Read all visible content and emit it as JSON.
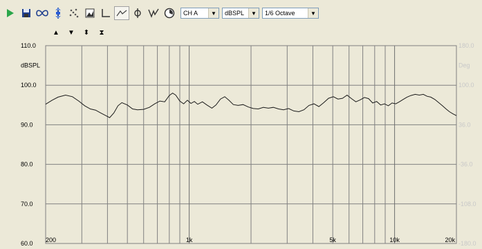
{
  "toolbar": {
    "buttons": [
      "play-icon",
      "save-icon",
      "loop-icon",
      "marker-icon",
      "scatter-icon",
      "image-icon",
      "axis-icon",
      "curve-icon",
      "phase-icon",
      "impulse-icon",
      "gauge-icon"
    ],
    "channel": "CH A",
    "units": "dBSPL",
    "smoothing": "1/6 Octave"
  },
  "subtoolbar": [
    "▲",
    "▼",
    "⬍",
    "⧗"
  ],
  "chart_data": {
    "type": "line",
    "xscale": "log",
    "xlim": [
      200,
      20000
    ],
    "ylim": [
      60,
      110
    ],
    "left_ticks": [
      "110.0",
      "dBSPL",
      "100.0",
      "90.0",
      "80.0",
      "70.0",
      "60.0"
    ],
    "right_ticks": [
      "180.0",
      "Deg",
      "100.0",
      "36.0",
      "-36.0",
      "-108.0",
      "-180.0"
    ],
    "x_tick_labels": [
      {
        "f": 200,
        "label": "200"
      },
      {
        "f": 1000,
        "label": "1k"
      },
      {
        "f": 5000,
        "label": "5k"
      },
      {
        "f": 10000,
        "label": "10k"
      },
      {
        "f": 20000,
        "label": "20k"
      }
    ],
    "grid_freqs": [
      300,
      400,
      500,
      600,
      700,
      800,
      900,
      1000,
      2000,
      3000,
      4000,
      5000,
      6000,
      7000,
      8000,
      9000,
      10000
    ],
    "colors": {
      "plot_bg": "#ece9d8",
      "grid": "#808080",
      "major_grid": "#6e6e6e",
      "trace": "#1a1a1a",
      "axis_text": "#000000",
      "right_text": "#c8c8c8"
    },
    "series": [
      {
        "points": [
          [
            200,
            95.2
          ],
          [
            215,
            96.2
          ],
          [
            230,
            97.0
          ],
          [
            250,
            97.5
          ],
          [
            270,
            97.1
          ],
          [
            290,
            96.0
          ],
          [
            310,
            94.8
          ],
          [
            330,
            94.0
          ],
          [
            350,
            93.7
          ],
          [
            370,
            93.0
          ],
          [
            390,
            92.4
          ],
          [
            410,
            91.8
          ],
          [
            430,
            93.0
          ],
          [
            450,
            94.8
          ],
          [
            470,
            95.6
          ],
          [
            500,
            95.0
          ],
          [
            530,
            94.0
          ],
          [
            560,
            93.8
          ],
          [
            600,
            93.9
          ],
          [
            640,
            94.4
          ],
          [
            680,
            95.3
          ],
          [
            720,
            96.0
          ],
          [
            760,
            95.8
          ],
          [
            800,
            97.4
          ],
          [
            830,
            98.0
          ],
          [
            860,
            97.5
          ],
          [
            900,
            96.0
          ],
          [
            940,
            95.3
          ],
          [
            980,
            96.2
          ],
          [
            1020,
            95.4
          ],
          [
            1060,
            95.9
          ],
          [
            1100,
            95.2
          ],
          [
            1160,
            95.8
          ],
          [
            1220,
            95.0
          ],
          [
            1290,
            94.2
          ],
          [
            1350,
            95.0
          ],
          [
            1420,
            96.5
          ],
          [
            1490,
            97.1
          ],
          [
            1560,
            96.2
          ],
          [
            1640,
            95.1
          ],
          [
            1730,
            94.9
          ],
          [
            1830,
            95.1
          ],
          [
            1940,
            94.5
          ],
          [
            2050,
            94.1
          ],
          [
            2170,
            94.0
          ],
          [
            2300,
            94.4
          ],
          [
            2430,
            94.2
          ],
          [
            2570,
            94.4
          ],
          [
            2720,
            94.0
          ],
          [
            2880,
            93.8
          ],
          [
            3050,
            94.1
          ],
          [
            3230,
            93.5
          ],
          [
            3420,
            93.3
          ],
          [
            3620,
            93.8
          ],
          [
            3830,
            94.9
          ],
          [
            4050,
            95.3
          ],
          [
            4280,
            94.6
          ],
          [
            4520,
            95.6
          ],
          [
            4770,
            96.7
          ],
          [
            5030,
            97.1
          ],
          [
            5300,
            96.5
          ],
          [
            5580,
            96.7
          ],
          [
            5870,
            97.5
          ],
          [
            6170,
            96.6
          ],
          [
            6480,
            95.8
          ],
          [
            6800,
            96.3
          ],
          [
            7130,
            96.9
          ],
          [
            7470,
            96.6
          ],
          [
            7820,
            95.5
          ],
          [
            8180,
            95.9
          ],
          [
            8550,
            95.0
          ],
          [
            8930,
            95.3
          ],
          [
            9320,
            94.8
          ],
          [
            9720,
            95.5
          ],
          [
            10130,
            95.3
          ],
          [
            10550,
            95.8
          ],
          [
            11000,
            96.4
          ],
          [
            11500,
            97.0
          ],
          [
            12000,
            97.4
          ],
          [
            12600,
            97.7
          ],
          [
            13200,
            97.5
          ],
          [
            13800,
            97.7
          ],
          [
            14400,
            97.2
          ],
          [
            15000,
            97.0
          ],
          [
            15700,
            96.4
          ],
          [
            16400,
            95.6
          ],
          [
            17100,
            94.8
          ],
          [
            17800,
            94.0
          ],
          [
            18500,
            93.3
          ],
          [
            19200,
            92.8
          ],
          [
            20000,
            92.3
          ]
        ]
      }
    ]
  }
}
